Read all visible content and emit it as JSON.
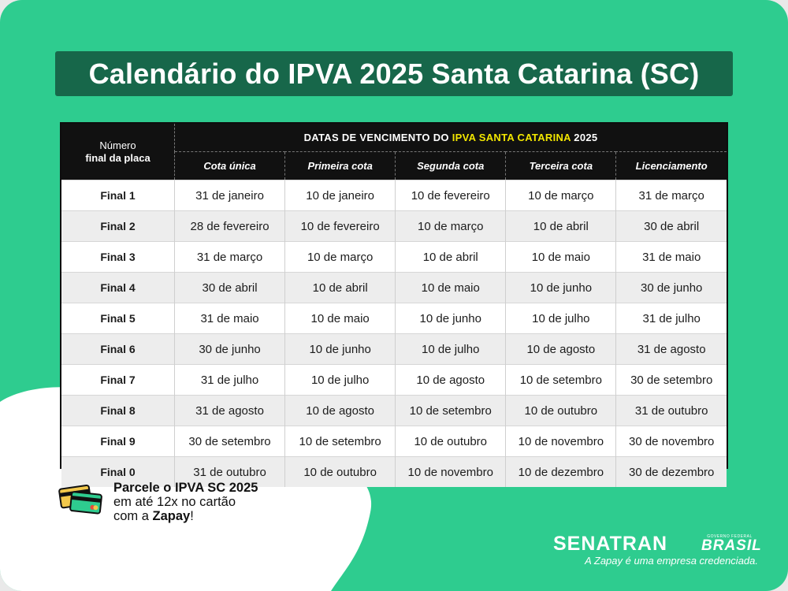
{
  "title": "Calendário do IPVA 2025 Santa Catarina (SC)",
  "table": {
    "plate_header_line1": "Número",
    "plate_header_line2": "final da placa",
    "span_header_prefix": "DATAS DE VENCIMENTO DO ",
    "span_header_highlight": "IPVA SANTA CATARINA",
    "span_header_suffix": " 2025",
    "columns": [
      "Cota única",
      "Primeira cota",
      "Segunda cota",
      "Terceira cota",
      "Licenciamento"
    ],
    "rows": [
      {
        "plate": "Final 1",
        "values": [
          "31 de janeiro",
          "10 de janeiro",
          "10 de fevereiro",
          "10 de março",
          "31 de março"
        ]
      },
      {
        "plate": "Final 2",
        "values": [
          "28 de fevereiro",
          "10 de fevereiro",
          "10 de março",
          "10 de abril",
          "30 de abril"
        ]
      },
      {
        "plate": "Final 3",
        "values": [
          "31 de março",
          "10 de março",
          "10 de abril",
          "10 de maio",
          "31 de maio"
        ]
      },
      {
        "plate": "Final 4",
        "values": [
          "30 de abril",
          "10 de abril",
          "10 de maio",
          "10 de junho",
          "30 de junho"
        ]
      },
      {
        "plate": "Final 5",
        "values": [
          "31 de maio",
          "10 de maio",
          "10 de junho",
          "10 de julho",
          "31 de julho"
        ]
      },
      {
        "plate": "Final 6",
        "values": [
          "30 de junho",
          "10 de junho",
          "10 de julho",
          "10 de agosto",
          "31 de agosto"
        ]
      },
      {
        "plate": "Final 7",
        "values": [
          "31 de julho",
          "10 de julho",
          "10 de agosto",
          "10 de setembro",
          "30 de setembro"
        ]
      },
      {
        "plate": "Final 8",
        "values": [
          "31 de agosto",
          "10 de agosto",
          "10 de setembro",
          "10 de outubro",
          "31 de outubro"
        ]
      },
      {
        "plate": "Final 9",
        "values": [
          "30 de setembro",
          "10 de setembro",
          "10 de outubro",
          "10 de novembro",
          "30 de novembro"
        ]
      },
      {
        "plate": "Final 0",
        "values": [
          "31 de outubro",
          "10 de outubro",
          "10 de novembro",
          "10 de dezembro",
          "30 de dezembro"
        ]
      }
    ]
  },
  "promo": {
    "line1": "Parcele o IPVA SC 2025",
    "line2": "em até 12x no cartão",
    "line3_prefix": "com a ",
    "line3_brand": "Zapay",
    "line3_suffix": "!",
    "icon": "credit-cards-icon"
  },
  "footer": {
    "senatran": "SENATRAN",
    "gov_small": "GOVERNO FEDERAL",
    "gov_logo": "BRASIL",
    "credential": "A Zapay é uma empresa credenciada."
  },
  "colors": {
    "background": "#2ecc8f",
    "title_box": "#17674a",
    "highlight": "#f2e600"
  }
}
